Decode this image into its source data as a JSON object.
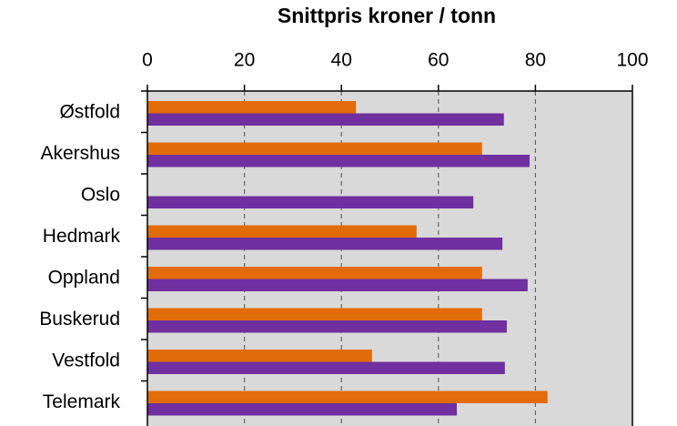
{
  "chart_data": {
    "type": "hbar",
    "title": "Snittpris kroner / tonn",
    "categories": [
      "Østfold",
      "Akershus",
      "Oslo",
      "Hedmark",
      "Oppland",
      "Buskerud",
      "Vestfold",
      "Telemark"
    ],
    "series": [
      {
        "color": "#e36c0a",
        "values": [
          43,
          69,
          null,
          55.5,
          69,
          69,
          46.3,
          82.5
        ]
      },
      {
        "color": "#7030a0",
        "values": [
          73.5,
          78.8,
          67.2,
          73.2,
          78.4,
          74.1,
          73.7,
          63.8
        ]
      }
    ],
    "xlim": [
      0,
      100
    ],
    "xticks": [
      0,
      20,
      40,
      60,
      80,
      100
    ],
    "grid": true,
    "background": "#d9d9d9"
  }
}
